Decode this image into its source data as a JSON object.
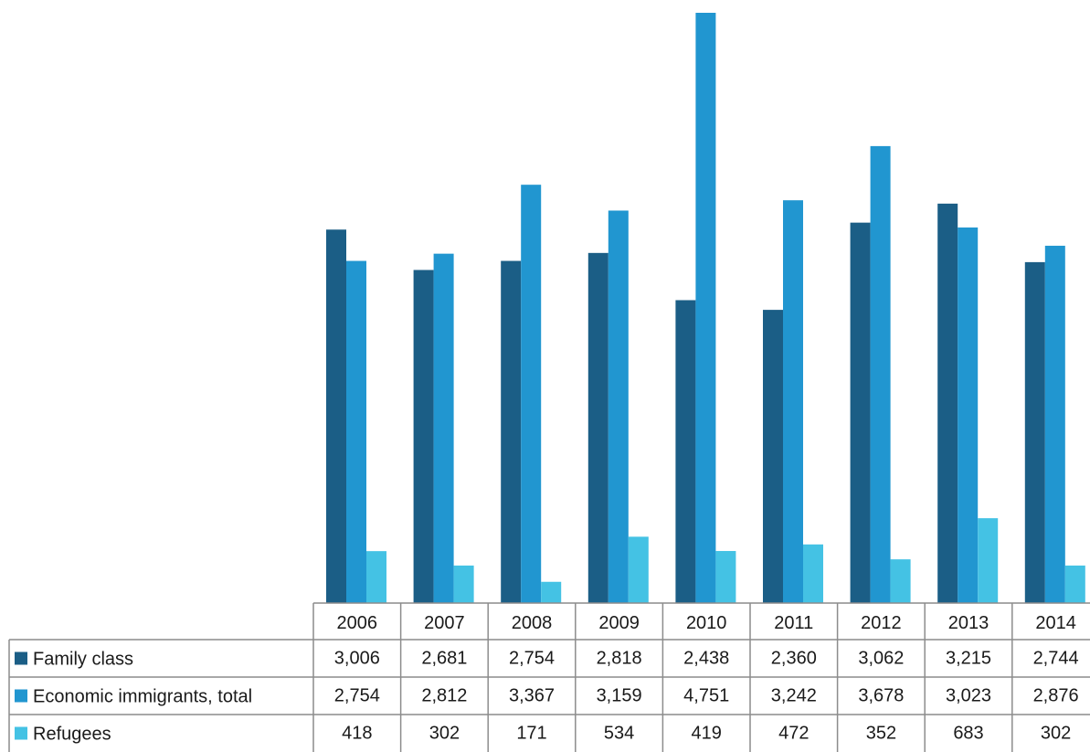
{
  "colors": {
    "family": "#1b5e86",
    "economic": "#2196d0",
    "refugees": "#44c2e4",
    "grid": "#8c8c8c"
  },
  "chart_data": {
    "type": "bar",
    "title": "",
    "xlabel": "",
    "ylabel": "",
    "ylim": [
      0,
      4751
    ],
    "grid": false,
    "legend": "data-table-left",
    "categories": [
      "2006",
      "2007",
      "2008",
      "2009",
      "2010",
      "2011",
      "2012",
      "2013",
      "2014"
    ],
    "series": [
      {
        "name": "Family class",
        "color_key": "family",
        "values": [
          3006,
          2681,
          2754,
          2818,
          2438,
          2360,
          3062,
          3215,
          2744
        ],
        "labels": [
          "3,006",
          "2,681",
          "2,754",
          "2,818",
          "2,438",
          "2,360",
          "3,062",
          "3,215",
          "2,744"
        ]
      },
      {
        "name": "Economic immigrants, total",
        "color_key": "economic",
        "values": [
          2754,
          2812,
          3367,
          3159,
          4751,
          3242,
          3678,
          3023,
          2876
        ],
        "labels": [
          "2,754",
          "2,812",
          "3,367",
          "3,159",
          "4,751",
          "3,242",
          "3,678",
          "3,023",
          "2,876"
        ]
      },
      {
        "name": "Refugees",
        "color_key": "refugees",
        "values": [
          418,
          302,
          171,
          534,
          419,
          472,
          352,
          683,
          302
        ],
        "labels": [
          "418",
          "302",
          "171",
          "534",
          "419",
          "472",
          "352",
          "683",
          "302"
        ]
      }
    ]
  }
}
